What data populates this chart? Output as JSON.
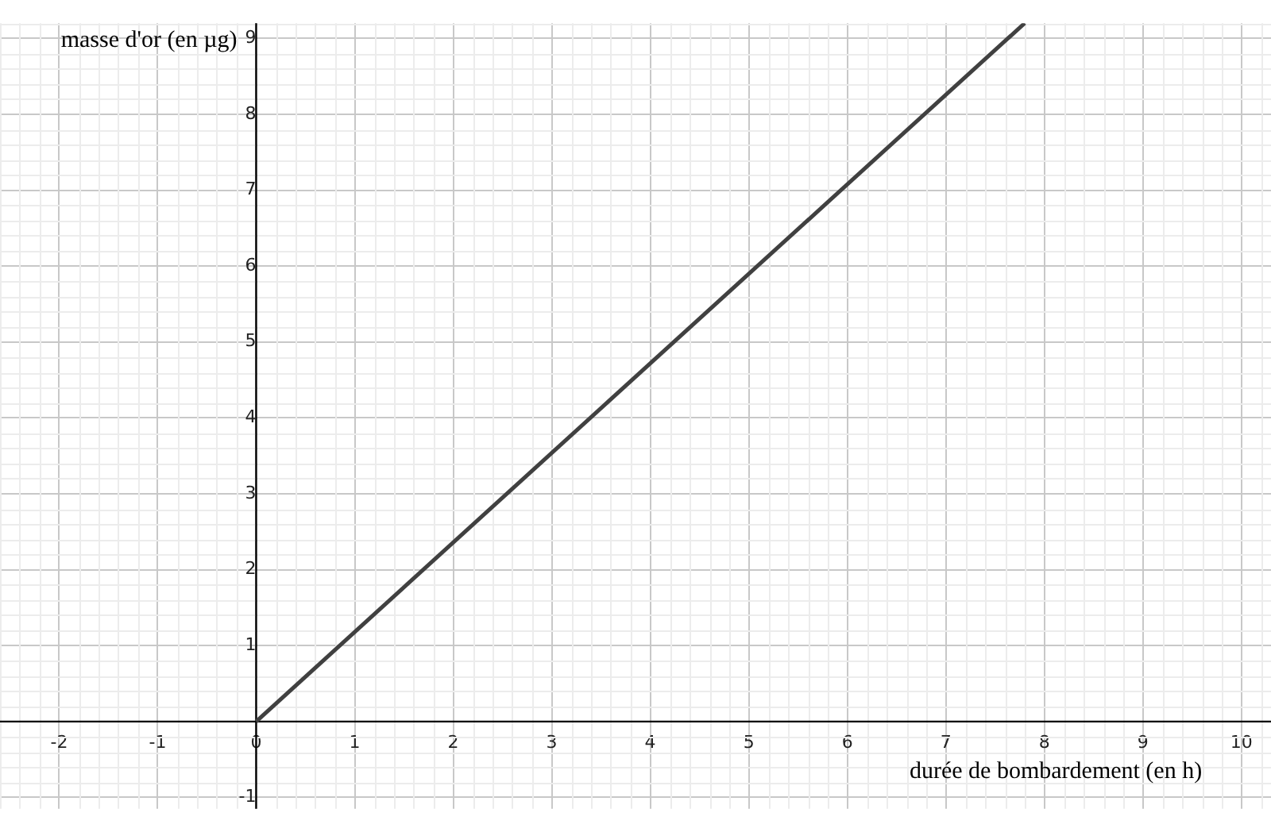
{
  "chart_data": {
    "type": "line",
    "xlabel": "durée de bombardement (en h)",
    "ylabel": "masse d'or (en µg)",
    "x": [
      0,
      7.8
    ],
    "series": [
      {
        "color": "#404040",
        "values": [
          0,
          9.2
        ]
      }
    ],
    "xlim": [
      -2.6,
      10.3
    ],
    "ylim": [
      -1.15,
      9.2
    ],
    "xticks": [
      -2,
      -1,
      {
        "value": 0,
        "label": "0"
      },
      1,
      2,
      3,
      4,
      5,
      6,
      7,
      8,
      9,
      10
    ],
    "yticks": [
      -1,
      1,
      2,
      3,
      4,
      5,
      6,
      7,
      8,
      9
    ],
    "grid": true,
    "legend": false,
    "marker": "none",
    "line_style": "solid"
  }
}
